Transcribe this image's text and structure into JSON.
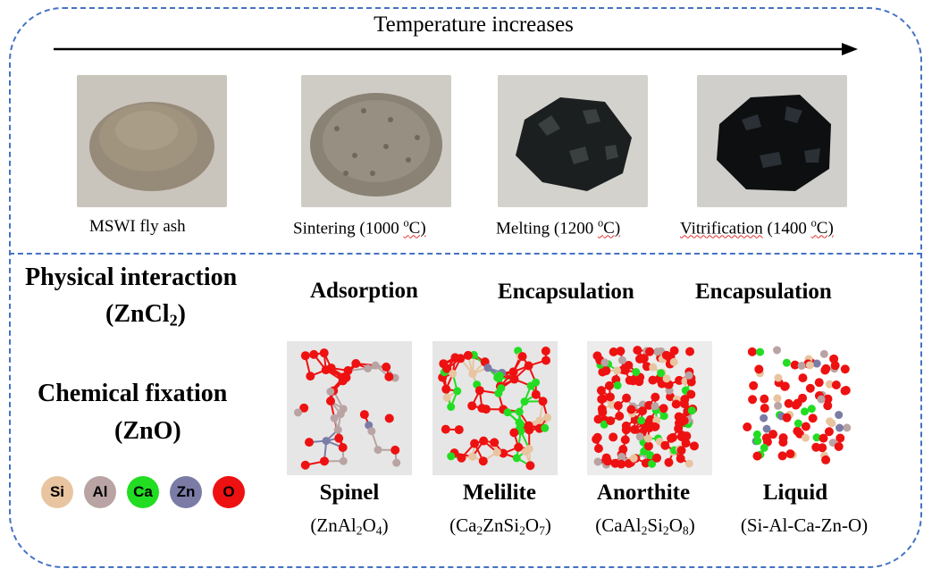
{
  "header": {
    "arrow_label": "Temperature increases"
  },
  "stages": [
    {
      "name": "MSWI fly ash",
      "photo_colors": {
        "bg": "#c9c4bc",
        "pile": "#8c7f6e"
      }
    },
    {
      "name": "Sintering (1000 ",
      "unit": "C)",
      "photo_colors": {
        "bg": "#cfccc6",
        "pile": "#8e877b"
      }
    },
    {
      "name": "Melting (1200 ",
      "unit": "C)",
      "photo_colors": {
        "bg": "#d4d2cd",
        "pile": "#1c1f1f"
      }
    },
    {
      "name": "Vitrification",
      "name_rest": " (1400 ",
      "unit": "C)",
      "photo_colors": {
        "bg": "#d0cfcc",
        "pile": "#0d0f10"
      }
    }
  ],
  "degree_symbol": "o",
  "physical": {
    "title": "Physical interaction",
    "compound_open": "(ZnCl",
    "compound_sub": "2",
    "compound_close": ")",
    "mechanisms": [
      "Adsorption",
      "Encapsulation",
      "Encapsulation"
    ]
  },
  "chemical": {
    "title": "Chemical fixation",
    "compound": "(ZnO)"
  },
  "legend": [
    {
      "symbol": "Si",
      "color": "#e8c4a0"
    },
    {
      "symbol": "Al",
      "color": "#b9a3a3"
    },
    {
      "symbol": "Ca",
      "color": "#22dd22"
    },
    {
      "symbol": "Zn",
      "color": "#7b7ca6"
    },
    {
      "symbol": "O",
      "color": "#ee1111"
    }
  ],
  "phases": [
    {
      "name": "Spinel",
      "formula_parts": [
        "(ZnAl",
        "2",
        "O",
        "4",
        ")"
      ]
    },
    {
      "name": "Melilite",
      "formula_parts": [
        "(Ca",
        "2",
        "ZnSi",
        "2",
        "O",
        "7",
        ")"
      ]
    },
    {
      "name": "Anorthite",
      "formula_parts": [
        "(CaAl",
        "2",
        "Si",
        "2",
        "O",
        "8",
        ")"
      ]
    },
    {
      "name": "Liquid",
      "formula_parts": [
        "(Si-Al-Ca-Zn-O)"
      ]
    }
  ]
}
